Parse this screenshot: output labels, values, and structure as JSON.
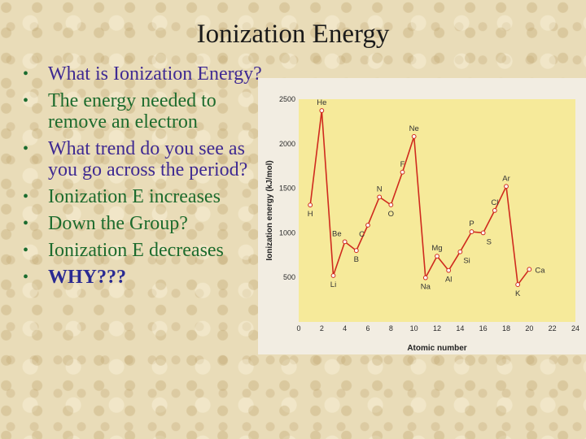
{
  "slide": {
    "title": "Ionization Energy",
    "bullets": [
      {
        "text": "What is Ionization Energy?",
        "style": "q"
      },
      {
        "text": "The energy needed to remove an electron",
        "style": "a"
      },
      {
        "text": "What trend do you see as you go across the period?",
        "style": "q"
      },
      {
        "text": "Ionization E increases",
        "style": "a"
      },
      {
        "text": "Down the Group?",
        "style": "a"
      },
      {
        "text": "Ionization E decreases",
        "style": "a"
      },
      {
        "text": "WHY???",
        "style": "bold"
      }
    ],
    "bullet_symbol": "•"
  },
  "colors": {
    "question": "#3f2a92",
    "answer": "#1d6b2d",
    "bullet": "#1b6c2f",
    "plot_bg": "#f6ea9a",
    "line": "#cf2a1e",
    "marker_fill": "#ffffff"
  },
  "chart_data": {
    "type": "line",
    "xlabel": "Atomic number",
    "ylabel": "Ionization energy (kJ/mol)",
    "xlim": [
      0,
      24
    ],
    "ylim": [
      0,
      2500
    ],
    "xticks": [
      0,
      2,
      4,
      6,
      8,
      10,
      12,
      14,
      16,
      18,
      20,
      22,
      24
    ],
    "yticks": [
      500,
      1000,
      1500,
      2000,
      2500
    ],
    "grid": false,
    "x": [
      1,
      2,
      3,
      4,
      5,
      6,
      7,
      8,
      9,
      10,
      11,
      12,
      13,
      14,
      15,
      16,
      17,
      18,
      19,
      20
    ],
    "y": [
      1312,
      2372,
      520,
      900,
      801,
      1086,
      1402,
      1314,
      1681,
      2081,
      496,
      738,
      578,
      787,
      1012,
      1000,
      1251,
      1521,
      419,
      590
    ],
    "point_labels": [
      "H",
      "He",
      "Li",
      "Be",
      "B",
      "C",
      "N",
      "O",
      "F",
      "Ne",
      "Na",
      "Mg",
      "Al",
      "Si",
      "P",
      "S",
      "Cl",
      "Ar",
      "K",
      "Ca"
    ],
    "label_positions": [
      "below",
      "above",
      "below",
      "above-left",
      "below",
      "below-left",
      "above",
      "below",
      "above",
      "above",
      "below",
      "above",
      "below",
      "below-right",
      "above",
      "below-right",
      "above",
      "above",
      "below",
      "right"
    ]
  }
}
